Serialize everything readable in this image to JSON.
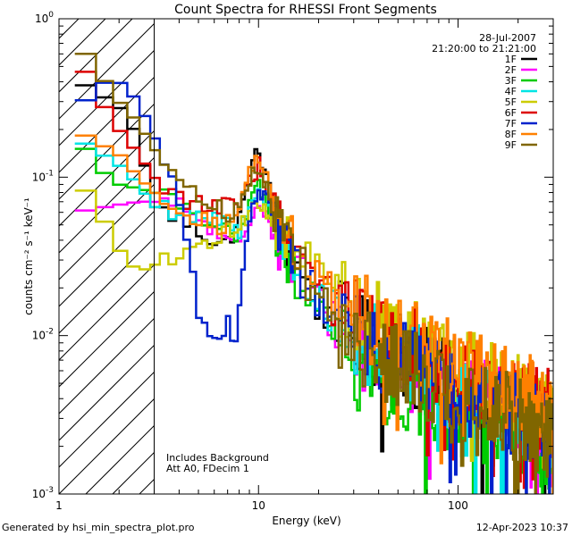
{
  "chart_data": {
    "type": "line",
    "title": "Count Spectra for RHESSI Front Segments",
    "xlabel": "Energy (keV)",
    "ylabel": "counts cm⁻² s⁻¹ keV⁻¹",
    "xscale": "log",
    "yscale": "log",
    "xlim": [
      1,
      300
    ],
    "ylim": [
      0.001,
      1
    ],
    "x_tick_labels": [
      {
        "value": 1,
        "label": "1"
      },
      {
        "value": 10,
        "label": "10"
      },
      {
        "value": 100,
        "label": "100"
      }
    ],
    "y_tick_labels": [
      {
        "value": 1,
        "mant": "10",
        "exp": "0"
      },
      {
        "value": 0.1,
        "mant": "10",
        "exp": "-1"
      },
      {
        "value": 0.01,
        "mant": "10",
        "exp": "-2"
      },
      {
        "value": 0.001,
        "mant": "10",
        "exp": "-3"
      }
    ],
    "date": "28-Jul-2007",
    "time_range": "21:20:00 to 21:21:00",
    "annotations": [
      "Includes Background",
      "Att A0, FDecim 1"
    ],
    "threshold_energy": 3,
    "legend_position": "top-right",
    "series": [
      {
        "name": "1F",
        "color": "#000000",
        "anchors": [
          [
            1.2,
            0.42
          ],
          [
            1.5,
            0.35
          ],
          [
            2,
            0.28
          ],
          [
            2.5,
            0.18
          ],
          [
            3,
            0.065
          ],
          [
            4,
            0.055
          ],
          [
            5,
            0.045
          ],
          [
            6,
            0.04
          ],
          [
            7,
            0.038
          ],
          [
            8,
            0.055
          ],
          [
            9,
            0.1
          ],
          [
            10,
            0.15
          ],
          [
            11,
            0.1
          ],
          [
            12,
            0.06
          ],
          [
            14,
            0.035
          ],
          [
            17,
            0.022
          ],
          [
            20,
            0.016
          ],
          [
            30,
            0.01
          ],
          [
            50,
            0.0075
          ],
          [
            70,
            0.006
          ],
          [
            100,
            0.005
          ],
          [
            150,
            0.0042
          ],
          [
            200,
            0.0035
          ],
          [
            300,
            0.0022
          ]
        ]
      },
      {
        "name": "2F",
        "color": "#ff00ff",
        "anchors": [
          [
            1.2,
            0.06
          ],
          [
            1.5,
            0.063
          ],
          [
            2,
            0.067
          ],
          [
            2.5,
            0.07
          ],
          [
            3,
            0.07
          ],
          [
            4,
            0.065
          ],
          [
            5,
            0.055
          ],
          [
            6,
            0.045
          ],
          [
            7,
            0.038
          ],
          [
            8,
            0.035
          ],
          [
            9,
            0.05
          ],
          [
            10,
            0.075
          ],
          [
            11,
            0.06
          ],
          [
            12,
            0.04
          ],
          [
            14,
            0.03
          ],
          [
            17,
            0.022
          ],
          [
            20,
            0.016
          ],
          [
            30,
            0.009
          ],
          [
            50,
            0.0065
          ],
          [
            70,
            0.0055
          ],
          [
            100,
            0.0045
          ],
          [
            150,
            0.0035
          ],
          [
            200,
            0.003
          ],
          [
            300,
            0.002
          ]
        ]
      },
      {
        "name": "3F",
        "color": "#00cc00",
        "anchors": [
          [
            1.2,
            0.2
          ],
          [
            1.5,
            0.12
          ],
          [
            2,
            0.09
          ],
          [
            2.5,
            0.085
          ],
          [
            3,
            0.08
          ],
          [
            4,
            0.07
          ],
          [
            5,
            0.06
          ],
          [
            6,
            0.052
          ],
          [
            7,
            0.045
          ],
          [
            8,
            0.04
          ],
          [
            9,
            0.065
          ],
          [
            10,
            0.09
          ],
          [
            11,
            0.07
          ],
          [
            12,
            0.045
          ],
          [
            14,
            0.03
          ],
          [
            17,
            0.02
          ],
          [
            20,
            0.014
          ],
          [
            30,
            0.0065
          ],
          [
            50,
            0.005
          ],
          [
            70,
            0.004
          ],
          [
            100,
            0.0033
          ],
          [
            150,
            0.0028
          ],
          [
            200,
            0.0025
          ],
          [
            300,
            0.0018
          ]
        ]
      },
      {
        "name": "4F",
        "color": "#00e5e5",
        "anchors": [
          [
            1.2,
            0.18
          ],
          [
            1.5,
            0.15
          ],
          [
            2,
            0.12
          ],
          [
            2.5,
            0.09
          ],
          [
            3,
            0.065
          ],
          [
            4,
            0.06
          ],
          [
            5,
            0.058
          ],
          [
            6,
            0.055
          ],
          [
            7,
            0.05
          ],
          [
            8,
            0.045
          ],
          [
            9,
            0.07
          ],
          [
            10,
            0.085
          ],
          [
            11,
            0.07
          ],
          [
            12,
            0.05
          ],
          [
            14,
            0.035
          ],
          [
            17,
            0.025
          ],
          [
            20,
            0.018
          ],
          [
            30,
            0.01
          ],
          [
            50,
            0.0075
          ],
          [
            70,
            0.006
          ],
          [
            100,
            0.005
          ],
          [
            150,
            0.004
          ],
          [
            200,
            0.0035
          ],
          [
            300,
            0.0025
          ]
        ]
      },
      {
        "name": "5F",
        "color": "#cccc00",
        "anchors": [
          [
            1.2,
            0.1
          ],
          [
            1.5,
            0.07
          ],
          [
            2,
            0.035
          ],
          [
            2.5,
            0.025
          ],
          [
            3,
            0.028
          ],
          [
            4,
            0.03
          ],
          [
            5,
            0.035
          ],
          [
            6,
            0.04
          ],
          [
            7,
            0.045
          ],
          [
            8,
            0.05
          ],
          [
            9,
            0.06
          ],
          [
            10,
            0.07
          ],
          [
            11,
            0.06
          ],
          [
            12,
            0.05
          ],
          [
            14,
            0.04
          ],
          [
            17,
            0.032
          ],
          [
            20,
            0.025
          ],
          [
            30,
            0.015
          ],
          [
            50,
            0.01
          ],
          [
            70,
            0.008
          ],
          [
            100,
            0.0065
          ],
          [
            150,
            0.005
          ],
          [
            200,
            0.004
          ],
          [
            300,
            0.003
          ]
        ]
      },
      {
        "name": "6F",
        "color": "#dd0000",
        "anchors": [
          [
            1.2,
            0.65
          ],
          [
            1.5,
            0.35
          ],
          [
            2,
            0.2
          ],
          [
            2.5,
            0.14
          ],
          [
            3,
            0.1
          ],
          [
            4,
            0.075
          ],
          [
            5,
            0.068
          ],
          [
            6,
            0.065
          ],
          [
            7,
            0.065
          ],
          [
            8,
            0.065
          ],
          [
            9,
            0.09
          ],
          [
            10,
            0.12
          ],
          [
            11,
            0.09
          ],
          [
            12,
            0.06
          ],
          [
            14,
            0.04
          ],
          [
            17,
            0.028
          ],
          [
            20,
            0.02
          ],
          [
            30,
            0.012
          ],
          [
            50,
            0.009
          ],
          [
            70,
            0.0075
          ],
          [
            100,
            0.006
          ],
          [
            150,
            0.005
          ],
          [
            200,
            0.0042
          ],
          [
            300,
            0.0032
          ]
        ]
      },
      {
        "name": "7F",
        "color": "#0022cc",
        "anchors": [
          [
            1.2,
            0.26
          ],
          [
            1.5,
            0.35
          ],
          [
            1.8,
            0.42
          ],
          [
            2,
            0.4
          ],
          [
            2.5,
            0.3
          ],
          [
            3,
            0.18
          ],
          [
            3.5,
            0.12
          ],
          [
            4,
            0.06
          ],
          [
            4.5,
            0.04
          ],
          [
            5,
            0.015
          ],
          [
            5.5,
            0.011
          ],
          [
            6,
            0.01
          ],
          [
            7,
            0.012
          ],
          [
            7.5,
            0.008
          ],
          [
            8,
            0.015
          ],
          [
            9,
            0.055
          ],
          [
            10,
            0.08
          ],
          [
            11,
            0.07
          ],
          [
            12,
            0.05
          ],
          [
            14,
            0.035
          ],
          [
            17,
            0.022
          ],
          [
            20,
            0.016
          ],
          [
            30,
            0.01
          ],
          [
            50,
            0.007
          ],
          [
            70,
            0.0055
          ],
          [
            100,
            0.0045
          ],
          [
            150,
            0.0038
          ],
          [
            200,
            0.0032
          ],
          [
            300,
            0.0022
          ]
        ]
      },
      {
        "name": "8F",
        "color": "#ff8000",
        "anchors": [
          [
            1.2,
            0.2
          ],
          [
            1.5,
            0.17
          ],
          [
            2,
            0.14
          ],
          [
            2.5,
            0.1
          ],
          [
            3,
            0.08
          ],
          [
            4,
            0.065
          ],
          [
            5,
            0.055
          ],
          [
            6,
            0.05
          ],
          [
            7,
            0.05
          ],
          [
            8,
            0.06
          ],
          [
            9,
            0.11
          ],
          [
            10,
            0.13
          ],
          [
            11,
            0.1
          ],
          [
            12,
            0.07
          ],
          [
            14,
            0.045
          ],
          [
            17,
            0.03
          ],
          [
            20,
            0.022
          ],
          [
            30,
            0.014
          ],
          [
            50,
            0.01
          ],
          [
            70,
            0.008
          ],
          [
            100,
            0.0065
          ],
          [
            150,
            0.0052
          ],
          [
            200,
            0.0045
          ],
          [
            300,
            0.0033
          ]
        ]
      },
      {
        "name": "9F",
        "color": "#806600",
        "anchors": [
          [
            1.2,
            0.75
          ],
          [
            1.5,
            0.5
          ],
          [
            2,
            0.3
          ],
          [
            2.5,
            0.22
          ],
          [
            3,
            0.15
          ],
          [
            4,
            0.1
          ],
          [
            5,
            0.075
          ],
          [
            6,
            0.065
          ],
          [
            7,
            0.06
          ],
          [
            8,
            0.06
          ],
          [
            9,
            0.1
          ],
          [
            10,
            0.12
          ],
          [
            11,
            0.09
          ],
          [
            12,
            0.06
          ],
          [
            14,
            0.04
          ],
          [
            17,
            0.025
          ],
          [
            20,
            0.017
          ],
          [
            30,
            0.0085
          ],
          [
            50,
            0.0065
          ],
          [
            70,
            0.0052
          ],
          [
            100,
            0.0042
          ],
          [
            150,
            0.0035
          ],
          [
            200,
            0.003
          ],
          [
            300,
            0.0022
          ]
        ]
      }
    ]
  },
  "footer": {
    "generated_by": "Generated by hsi_min_spectra_plot.pro",
    "timestamp": "12-Apr-2023 10:37"
  }
}
